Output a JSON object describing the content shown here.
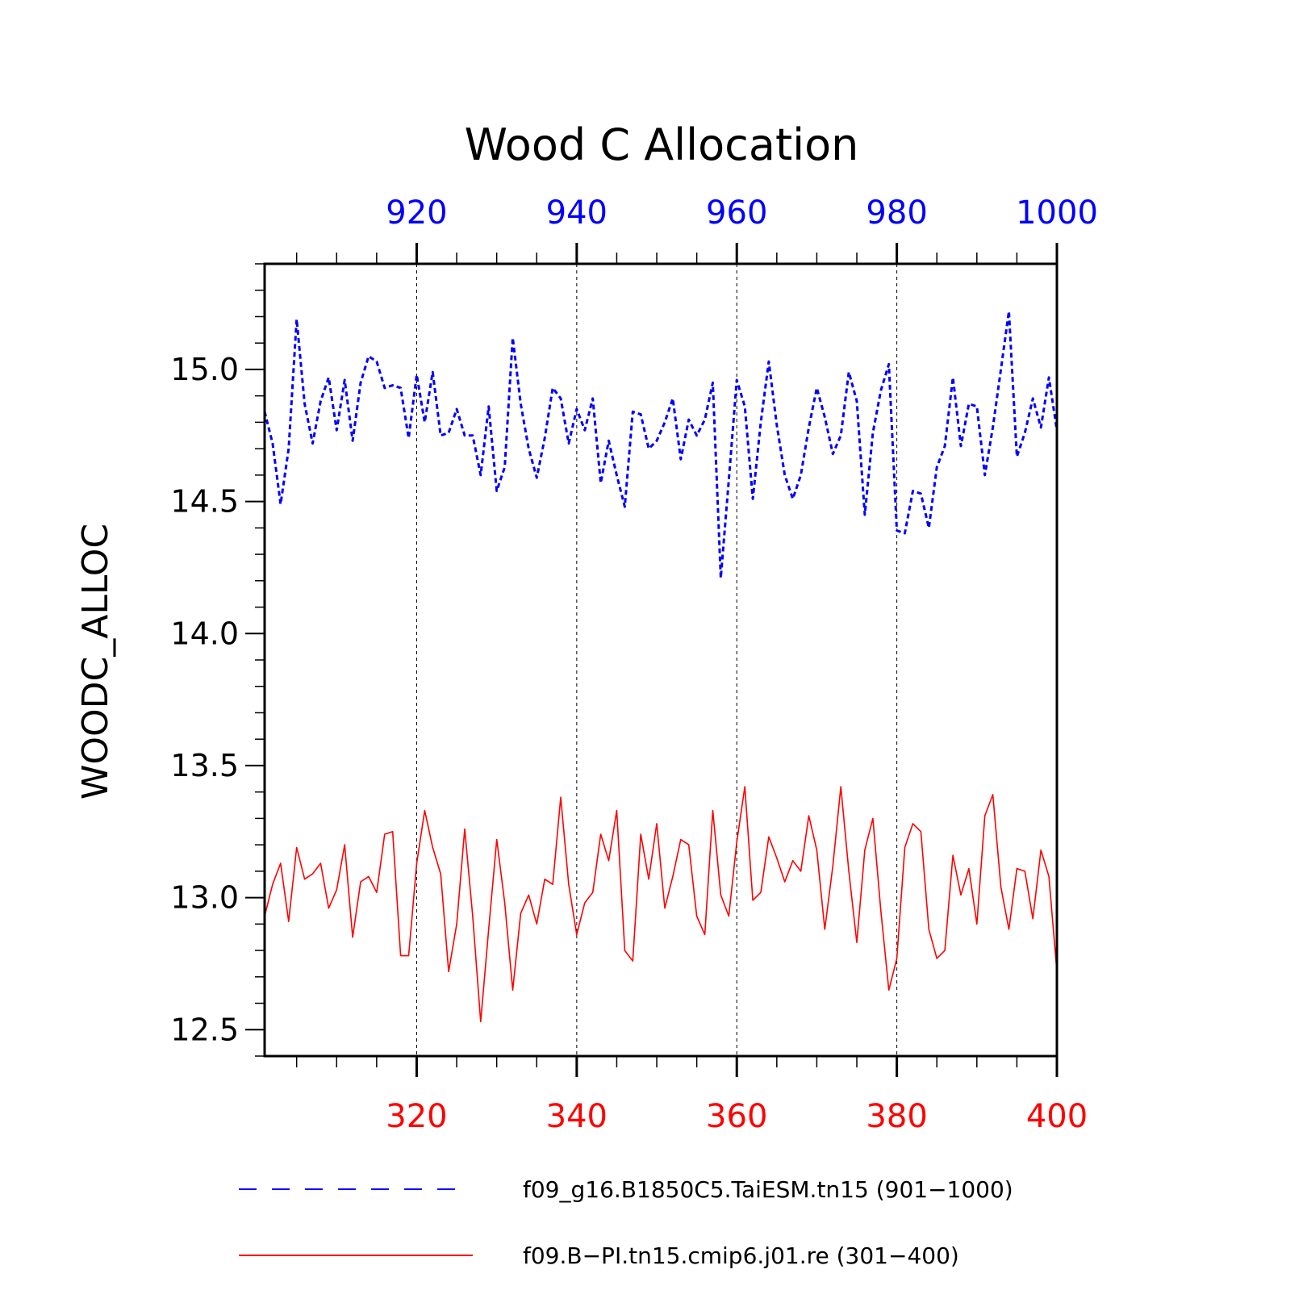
{
  "chart_data": {
    "type": "line",
    "title": "Wood C Allocation",
    "ylabel": "WOODC_ALLOC",
    "ylim": [
      12.4,
      15.4
    ],
    "yticks": [
      "12.5",
      "13.0",
      "13.5",
      "14.0",
      "14.5",
      "15.0"
    ],
    "grid": "vertical dashed at major x ticks",
    "legend_position": "bottom",
    "top_axis": {
      "color": "#0000ff",
      "range": [
        901,
        1000
      ],
      "ticks": [
        "920",
        "940",
        "960",
        "980",
        "1000"
      ]
    },
    "bottom_axis": {
      "color": "#ff0000",
      "range": [
        301,
        400
      ],
      "ticks": [
        "320",
        "340",
        "360",
        "380",
        "400"
      ]
    },
    "series": [
      {
        "name": "f09_g16.B1850C5.TaiESM.tn15 (901−1000)",
        "color": "#0000ff",
        "style": "dashed",
        "axis": "top",
        "x_start": 901,
        "values": [
          14.84,
          14.72,
          14.49,
          14.7,
          15.19,
          14.87,
          14.72,
          14.88,
          14.97,
          14.77,
          14.96,
          14.73,
          14.95,
          15.05,
          15.03,
          14.93,
          14.94,
          14.93,
          14.74,
          14.98,
          14.8,
          14.99,
          14.75,
          14.76,
          14.85,
          14.75,
          14.75,
          14.6,
          14.86,
          14.54,
          14.63,
          15.12,
          14.87,
          14.7,
          14.59,
          14.74,
          14.93,
          14.89,
          14.72,
          14.85,
          14.77,
          14.89,
          14.57,
          14.73,
          14.6,
          14.48,
          14.84,
          14.83,
          14.7,
          14.73,
          14.8,
          14.89,
          14.66,
          14.81,
          14.75,
          14.81,
          14.95,
          14.21,
          14.58,
          14.96,
          14.86,
          14.51,
          14.8,
          15.03,
          14.79,
          14.6,
          14.51,
          14.6,
          14.78,
          14.93,
          14.82,
          14.68,
          14.75,
          14.99,
          14.88,
          14.45,
          14.76,
          14.92,
          15.02,
          14.39,
          14.38,
          14.54,
          14.53,
          14.4,
          14.63,
          14.71,
          14.97,
          14.71,
          14.87,
          14.86,
          14.6,
          14.78,
          15.0,
          15.22,
          14.67,
          14.76,
          14.89,
          14.78,
          14.97,
          14.77
        ]
      },
      {
        "name": "f09.B−PI.tn15.cmip6.j01.re (301−400)",
        "color": "#ff0000",
        "style": "solid",
        "axis": "bottom",
        "x_start": 301,
        "values": [
          12.93,
          13.05,
          13.13,
          12.91,
          13.19,
          13.07,
          13.09,
          13.13,
          12.96,
          13.03,
          13.2,
          12.85,
          13.06,
          13.08,
          13.02,
          13.24,
          13.25,
          12.78,
          12.78,
          13.13,
          13.33,
          13.19,
          13.09,
          12.72,
          12.9,
          13.26,
          12.93,
          12.53,
          12.88,
          13.22,
          12.98,
          12.65,
          12.94,
          13.01,
          12.9,
          13.07,
          13.05,
          13.38,
          13.05,
          12.86,
          12.98,
          13.02,
          13.24,
          13.14,
          13.33,
          12.8,
          12.76,
          13.24,
          13.07,
          13.28,
          12.96,
          13.08,
          13.22,
          13.2,
          12.93,
          12.86,
          13.33,
          13.01,
          12.93,
          13.21,
          13.42,
          12.99,
          13.02,
          13.23,
          13.15,
          13.06,
          13.14,
          13.1,
          13.31,
          13.18,
          12.88,
          13.12,
          13.42,
          13.1,
          12.83,
          13.18,
          13.3,
          12.95,
          12.65,
          12.77,
          13.19,
          13.28,
          13.25,
          12.88,
          12.77,
          12.8,
          13.16,
          13.01,
          13.11,
          12.9,
          13.31,
          13.39,
          13.04,
          12.88,
          13.11,
          13.1,
          12.92,
          13.18,
          13.08,
          12.72
        ]
      }
    ]
  }
}
